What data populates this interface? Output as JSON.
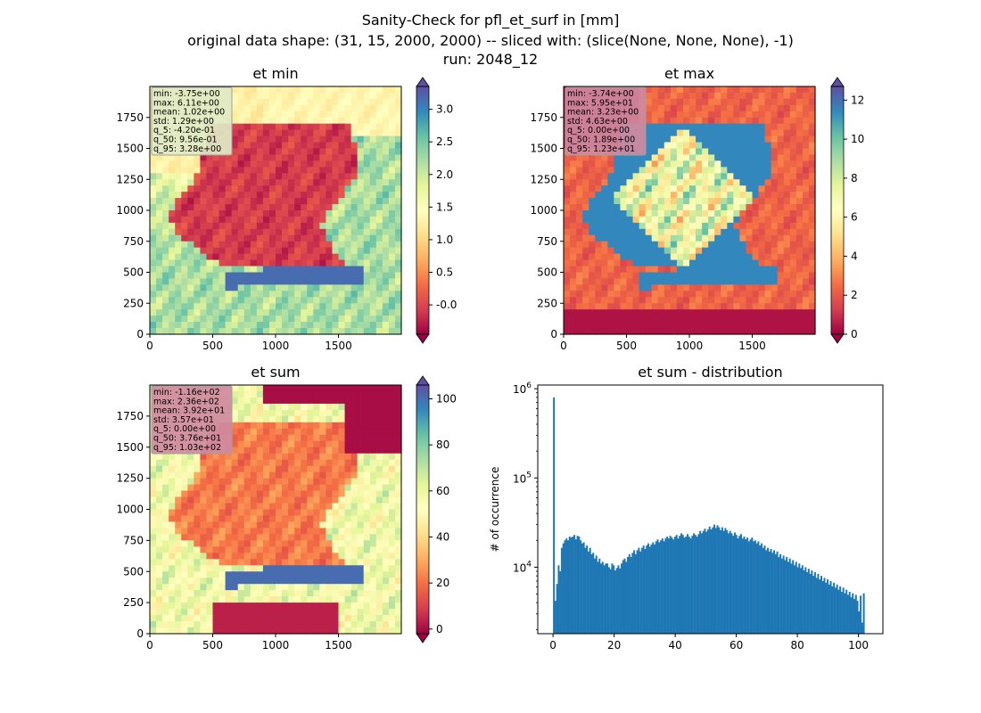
{
  "figure": {
    "title_lines": [
      "Sanity-Check for pfl_et_surf in [mm]",
      "original data shape: (31, 15, 2000, 2000) -- sliced with: (slice(None, None, None), -1)",
      "run: 2048_12"
    ]
  },
  "chart_data": [
    {
      "type": "heatmap",
      "title": "et min",
      "xlim": [
        0,
        2000
      ],
      "ylim": [
        0,
        2000
      ],
      "xticks": [
        "0",
        "500",
        "1000",
        "1500"
      ],
      "yticks": [
        "0",
        "250",
        "500",
        "750",
        "1000",
        "1250",
        "1500",
        "1750"
      ],
      "colormap": "Spectral",
      "colorbar": {
        "range": [
          -0.45,
          3.35
        ],
        "ticks": [
          "-0.0",
          "0.5",
          "1.0",
          "1.5",
          "2.0",
          "2.5",
          "3.0"
        ],
        "tick_values": [
          0,
          0.5,
          1.0,
          1.5,
          2.0,
          2.5,
          3.0
        ]
      },
      "stats": [
        "min: -3.75e+00",
        "max: 6.11e+00",
        "mean: 1.02e+00",
        "std: 1.29e+00",
        "q_5: -4.20e-01",
        "q_50: 9.56e-01",
        "q_95: 3.28e+00"
      ],
      "stats_box_color": "#dfe9c6"
    },
    {
      "type": "heatmap",
      "title": "et max",
      "xlim": [
        0,
        2000
      ],
      "ylim": [
        0,
        2000
      ],
      "xticks": [
        "0",
        "500",
        "1000",
        "1500"
      ],
      "yticks": [
        "0",
        "250",
        "500",
        "750",
        "1000",
        "1250",
        "1500",
        "1750"
      ],
      "colormap": "Spectral",
      "colorbar": {
        "range": [
          0,
          12.7
        ],
        "ticks": [
          "0",
          "2",
          "4",
          "6",
          "8",
          "10",
          "12"
        ],
        "tick_values": [
          0,
          2,
          4,
          6,
          8,
          10,
          12
        ]
      },
      "stats": [
        "min: -3.74e+00",
        "max: 5.95e+01",
        "mean: 3.23e+00",
        "std: 4.63e+00",
        "q_5: 0.00e+00",
        "q_50: 1.89e+00",
        "q_95: 1.23e+01"
      ],
      "stats_box_color": "#cf8aa0"
    },
    {
      "type": "heatmap",
      "title": "et sum",
      "xlim": [
        0,
        2000
      ],
      "ylim": [
        0,
        2000
      ],
      "xticks": [
        "0",
        "500",
        "1000",
        "1500"
      ],
      "yticks": [
        "0",
        "250",
        "500",
        "750",
        "1000",
        "1250",
        "1500",
        "1750"
      ],
      "colormap": "Spectral",
      "colorbar": {
        "range": [
          -2,
          106
        ],
        "ticks": [
          "0",
          "20",
          "40",
          "60",
          "80",
          "100"
        ],
        "tick_values": [
          0,
          20,
          40,
          60,
          80,
          100
        ]
      },
      "stats": [
        "min: -1.16e+02",
        "max: 2.36e+02",
        "mean: 3.92e+01",
        "std: 3.57e+01",
        "q_5: 0.00e+00",
        "q_50: 3.76e+01",
        "q_95: 1.03e+02"
      ],
      "stats_box_color": "#cf8aa0"
    },
    {
      "type": "bar",
      "title": "et sum - distribution",
      "ylabel": "# of occurrence",
      "ylog": true,
      "xlim": [
        -5,
        108
      ],
      "ylim": [
        1800,
        1100000
      ],
      "xticks": [
        "0",
        "20",
        "40",
        "60",
        "80",
        "100"
      ],
      "xtick_values": [
        0,
        20,
        40,
        60,
        80,
        100
      ],
      "yticks": [
        {
          "base": "10",
          "exp": "4",
          "value": 10000
        },
        {
          "base": "10",
          "exp": "5",
          "value": 100000
        },
        {
          "base": "10",
          "exp": "6",
          "value": 1000000
        }
      ],
      "bar_color": "#1f77b4",
      "bins_start": 0,
      "bin_width": 0.515,
      "values": [
        800000,
        4200,
        6500,
        10500,
        9000,
        16500,
        18500,
        20000,
        21000,
        20000,
        22000,
        21500,
        22000,
        23000,
        20500,
        22500,
        22000,
        20000,
        18500,
        19000,
        16500,
        17500,
        15000,
        16500,
        14000,
        14500,
        12500,
        13500,
        11500,
        12500,
        11000,
        11500,
        10500,
        11000,
        11000,
        10000,
        9500,
        11000,
        10500,
        9200,
        9800,
        10500,
        9700,
        11000,
        12000,
        12500,
        11500,
        13000,
        14000,
        13000,
        14500,
        15500,
        14000,
        15500,
        16500,
        15000,
        16500,
        17500,
        16000,
        17500,
        18500,
        17000,
        18000,
        19000,
        18000,
        19500,
        20500,
        19000,
        20000,
        21000,
        19500,
        21000,
        22000,
        21000,
        22500,
        21500,
        20500,
        22000,
        23000,
        21000,
        22500,
        24000,
        23000,
        21500,
        22000,
        23500,
        22000,
        21000,
        22500,
        24000,
        23000,
        22000,
        23500,
        25500,
        24000,
        25500,
        27000,
        25000,
        26500,
        28500,
        26500,
        28000,
        30000,
        27500,
        29500,
        28000,
        26000,
        28000,
        25500,
        27500,
        26000,
        24000,
        25500,
        24000,
        22500,
        24500,
        23000,
        21000,
        22500,
        23500,
        21000,
        22000,
        20500,
        21500,
        19500,
        20500,
        21500,
        19500,
        20000,
        18500,
        19500,
        17500,
        18500,
        16500,
        17500,
        15500,
        16500,
        15000,
        16000,
        14500,
        15500,
        14000,
        15000,
        13000,
        14000,
        12500,
        13500,
        12000,
        13000,
        11500,
        12500,
        11000,
        12000,
        10500,
        11500,
        10000,
        11000,
        9800,
        10500,
        9200,
        10000,
        8800,
        9600,
        8400,
        9200,
        8000,
        8800,
        7600,
        8400,
        7300,
        8000,
        7000,
        7600,
        6700,
        7300,
        6400,
        7000,
        6100,
        6700,
        5900,
        6400,
        5600,
        6100,
        5300,
        5900,
        5100,
        5600,
        4900,
        5300,
        4600,
        5100,
        4400,
        4900,
        4200,
        3200,
        4800,
        2400,
        5100
      ]
    }
  ]
}
